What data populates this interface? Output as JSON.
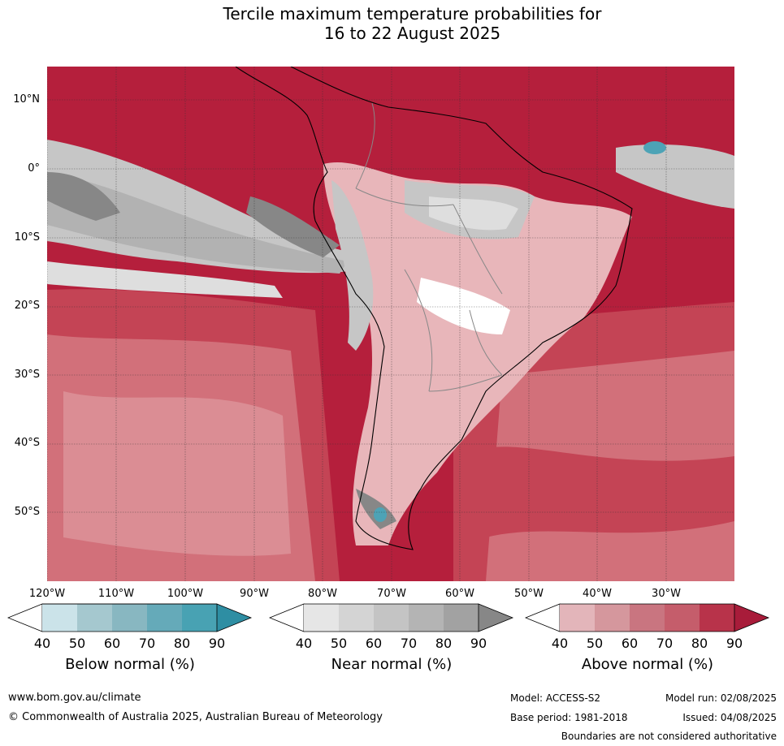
{
  "title_line1": "Tercile maximum temperature probabilities for",
  "title_line2": "16 to 22 August 2025",
  "map": {
    "lat_labels": [
      "10°N",
      "0°",
      "10°S",
      "20°S",
      "30°S",
      "40°S",
      "50°S"
    ],
    "lon_labels": [
      "120°W",
      "110°W",
      "100°W",
      "90°W",
      "80°W",
      "70°W",
      "60°W",
      "50°W",
      "40°W",
      "30°W"
    ],
    "colors": {
      "above_90": "#b51f3c",
      "above_80": "#c44455",
      "above_70": "#d2707a",
      "above_60": "#db8d94",
      "above_50": "#e8b6ba",
      "near_90": "#878787",
      "near_70": "#b2b2b2",
      "near_60": "#c6c6c6",
      "near_50": "#dedede",
      "below_80": "#4da3b6",
      "below_50": "#c8e0e6"
    }
  },
  "colorbars": [
    {
      "title": "Below normal (%)",
      "ticks": [
        "40",
        "50",
        "60",
        "70",
        "80",
        "90"
      ],
      "colors": [
        "#ffffff",
        "#cbe3e9",
        "#a5c8cf",
        "#88b7c1",
        "#65aab9",
        "#48a2b3",
        "#2e8ea3"
      ]
    },
    {
      "title": "Near normal (%)",
      "ticks": [
        "40",
        "50",
        "60",
        "70",
        "80",
        "90"
      ],
      "colors": [
        "#ffffff",
        "#e6e6e6",
        "#d4d4d4",
        "#c4c4c4",
        "#b4b4b4",
        "#a2a2a2",
        "#878787"
      ]
    },
    {
      "title": "Above normal (%)",
      "ticks": [
        "40",
        "50",
        "60",
        "70",
        "80",
        "90"
      ],
      "colors": [
        "#ffffff",
        "#e3b5ba",
        "#d5979d",
        "#c97580",
        "#c55d6b",
        "#b8334a",
        "#a81c3a"
      ]
    }
  ],
  "footer": {
    "website": "www.bom.gov.au/climate",
    "copyright": "© Commonwealth of Australia 2025, Australian Bureau of Meteorology",
    "model": "Model: ACCESS-S2",
    "model_run": "Model run: 02/08/2025",
    "base_period": "Base period: 1981-2018",
    "issued": "Issued: 04/08/2025",
    "disclaimer": "Boundaries are not considered authoritative"
  }
}
